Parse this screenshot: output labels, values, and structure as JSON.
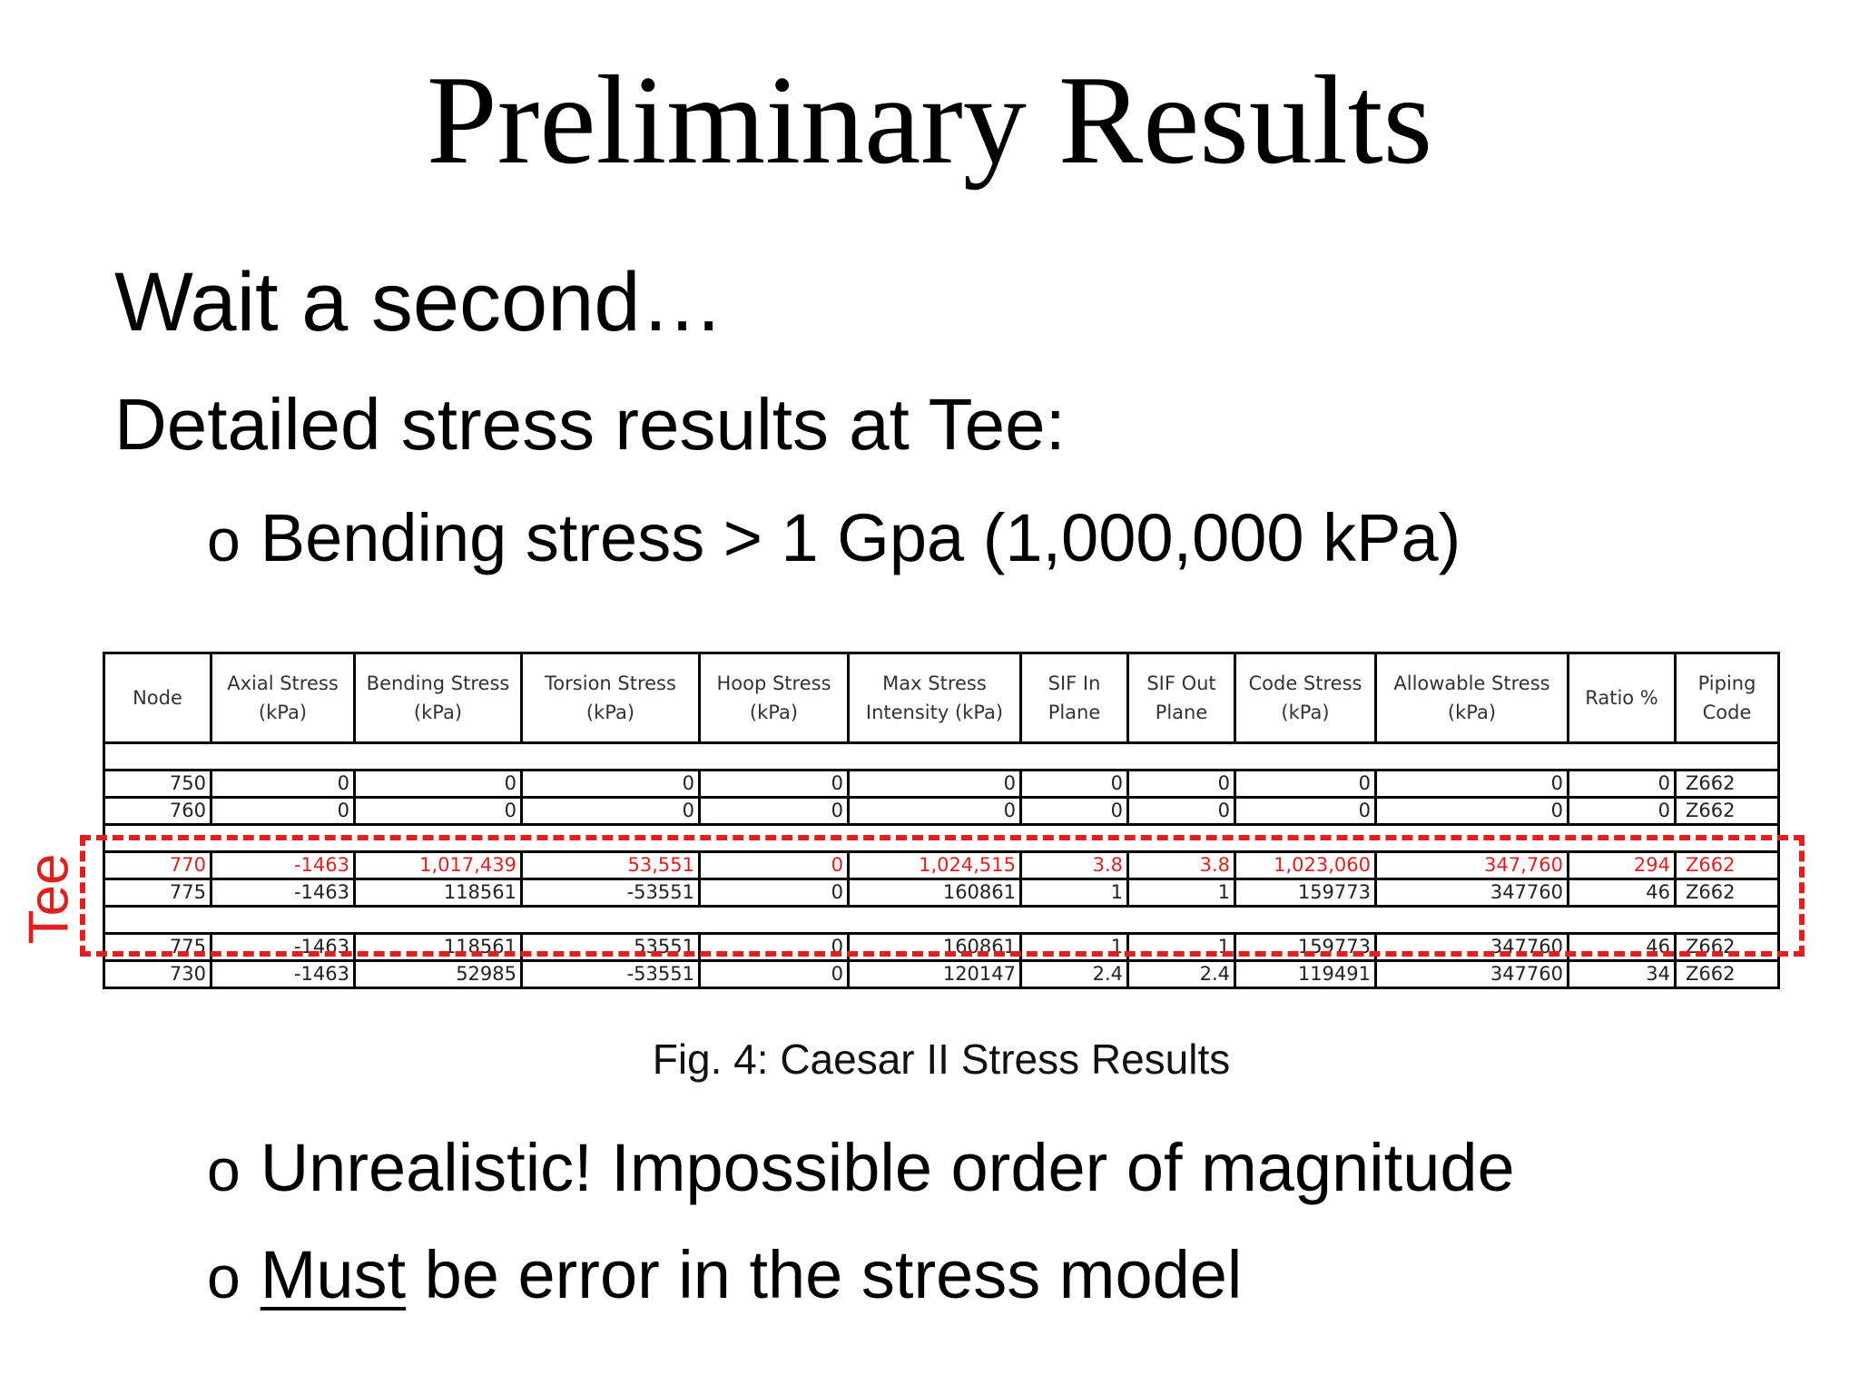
{
  "slide": {
    "title": "Preliminary Results",
    "heading": "Wait a second…",
    "subheading": "Detailed stress results at Tee:",
    "bullet_marker": "o",
    "bullets": [
      {
        "text": "Bending stress > 1 Gpa  (1,000,000 kPa)"
      },
      {
        "text": "Unrealistic! Impossible order of magnitude"
      },
      {
        "underlined": "Must",
        "rest": " be error in the stress model"
      }
    ],
    "tee_label": "Tee",
    "caption": "Fig. 4: Caesar II Stress Results"
  },
  "table": {
    "headers": [
      [
        "Node"
      ],
      [
        "Axial Stress",
        "(kPa)"
      ],
      [
        "Bending Stress",
        "(kPa)"
      ],
      [
        "Torsion Stress",
        "(kPa)"
      ],
      [
        "Hoop Stress",
        "(kPa)"
      ],
      [
        "Max Stress",
        "Intensity (kPa)"
      ],
      [
        "SIF In",
        "Plane"
      ],
      [
        "SIF Out",
        "Plane"
      ],
      [
        "Code Stress",
        "(kPa)"
      ],
      [
        "Allowable Stress",
        "(kPa)"
      ],
      [
        "Ratio %"
      ],
      [
        "Piping",
        "Code"
      ]
    ],
    "rows": [
      {
        "blank": true
      },
      {
        "cells": [
          "750",
          "0",
          "0",
          "0",
          "0",
          "0",
          "0",
          "0",
          "0",
          "0",
          "0",
          "Z662"
        ]
      },
      {
        "cells": [
          "760",
          "0",
          "0",
          "0",
          "0",
          "0",
          "0",
          "0",
          "0",
          "0",
          "0",
          "Z662"
        ]
      },
      {
        "blank": true
      },
      {
        "highlight": true,
        "cells": [
          "770",
          "-1463",
          "1,017,439",
          "53,551",
          "0",
          "1,024,515",
          "3.8",
          "3.8",
          "1,023,060",
          "347,760",
          "294",
          "Z662"
        ]
      },
      {
        "cells": [
          "775",
          "-1463",
          "118561",
          "-53551",
          "0",
          "160861",
          "1",
          "1",
          "159773",
          "347760",
          "46",
          "Z662"
        ]
      },
      {
        "blank": true
      },
      {
        "cells": [
          "775",
          "-1463",
          "118561",
          "53551",
          "0",
          "160861",
          "1",
          "1",
          "159773",
          "347760",
          "46",
          "Z662"
        ]
      },
      {
        "cells": [
          "730",
          "-1463",
          "52985",
          "-53551",
          "0",
          "120147",
          "2.4",
          "2.4",
          "119491",
          "347760",
          "34",
          "Z662"
        ]
      }
    ]
  }
}
